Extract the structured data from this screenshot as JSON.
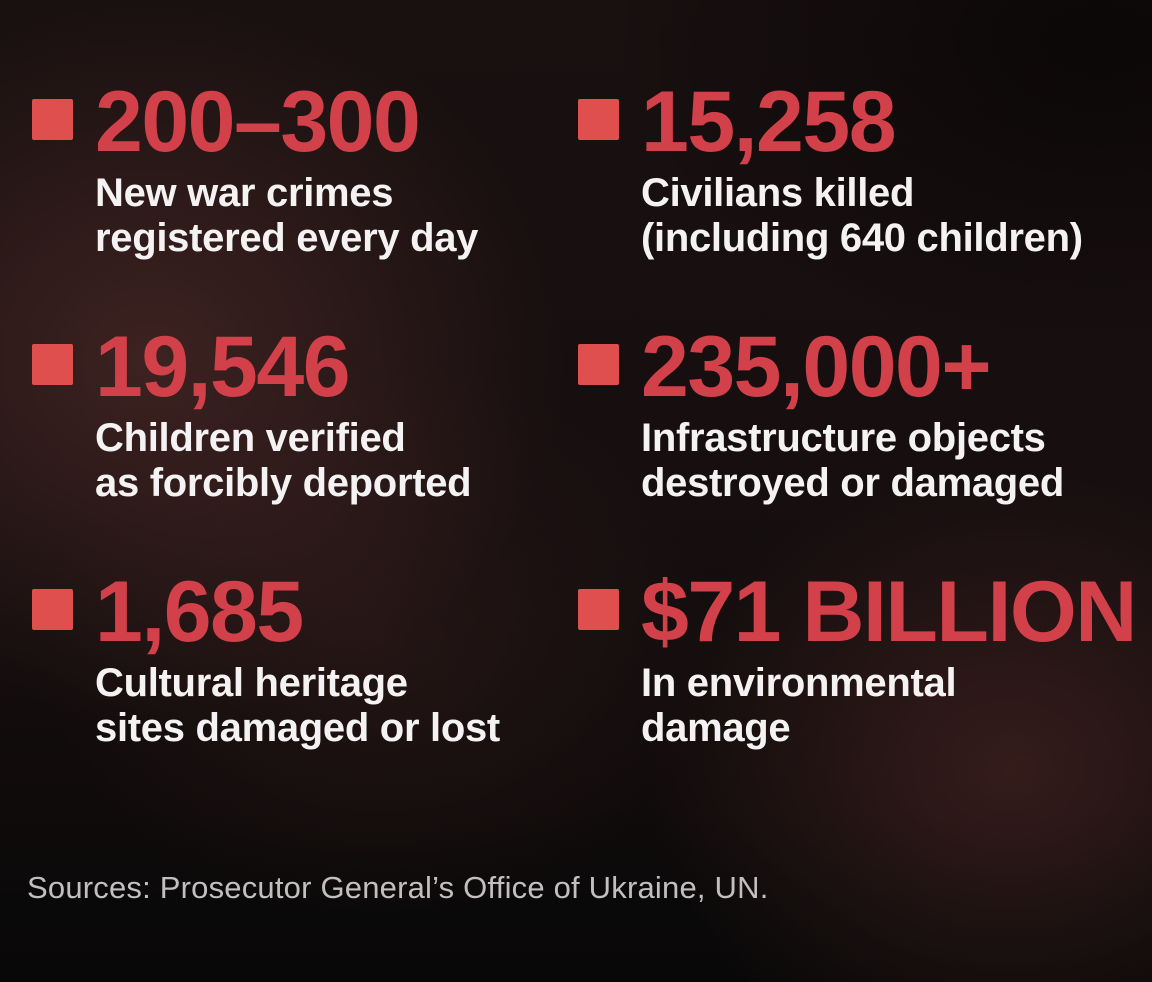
{
  "colors": {
    "background_base": "#130d0e",
    "background_glow": "#5c322e",
    "stat_number": "#d2404a",
    "bullet_square": "#de4f4e",
    "label_text": "#f4f2f2",
    "source_text": "#c3bfc0"
  },
  "stats": [
    {
      "value": "200–300",
      "label_lines": [
        "New war crimes",
        "registered every day"
      ]
    },
    {
      "value": "15,258",
      "label_lines": [
        "Civilians killed",
        "(including 640 children)"
      ]
    },
    {
      "value": "19,546",
      "label_lines": [
        "Children verified",
        "as forcibly deported"
      ]
    },
    {
      "value": "235,000+",
      "label_lines": [
        "Infrastructure objects",
        "destroyed or damaged"
      ]
    },
    {
      "value": "1,685",
      "label_lines": [
        "Cultural heritage",
        "sites damaged or lost"
      ]
    },
    {
      "value": "$71 BILLION",
      "label_lines": [
        "In environmental",
        "damage"
      ]
    }
  ],
  "source": "Sources: Prosecutor General’s Office of Ukraine, UN.",
  "chart_data": {
    "type": "table",
    "title": "",
    "categories": [
      "New war crimes registered every day",
      "Civilians killed (including 640 children)",
      "Children verified as forcibly deported",
      "Infrastructure objects destroyed or damaged",
      "Cultural heritage sites damaged or lost",
      "In environmental damage"
    ],
    "values": [
      "200–300",
      "15,258",
      "19,546",
      "235,000+",
      "1,685",
      "$71 BILLION"
    ],
    "numeric_values": [
      250,
      15258,
      19546,
      235000,
      1685,
      71000000000
    ],
    "source": "Sources: Prosecutor General’s Office of Ukraine, UN.",
    "legend_position": "none",
    "grid": false
  }
}
